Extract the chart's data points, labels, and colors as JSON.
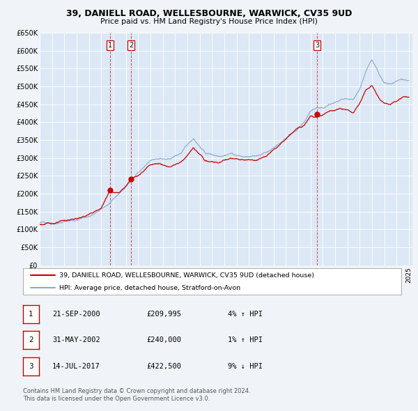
{
  "title": "39, DANIELL ROAD, WELLESBOURNE, WARWICK, CV35 9UD",
  "subtitle": "Price paid vs. HM Land Registry's House Price Index (HPI)",
  "background_color": "#f0f4f8",
  "plot_bg_color": "#dce8f5",
  "grid_color": "#ffffff",
  "red_line_color": "#cc0000",
  "blue_line_color": "#88aacc",
  "ylim": [
    0,
    650000
  ],
  "yticks": [
    0,
    50000,
    100000,
    150000,
    200000,
    250000,
    300000,
    350000,
    400000,
    450000,
    500000,
    550000,
    600000,
    650000
  ],
  "ytick_labels": [
    "£0",
    "£50K",
    "£100K",
    "£150K",
    "£200K",
    "£250K",
    "£300K",
    "£350K",
    "£400K",
    "£450K",
    "£500K",
    "£550K",
    "£600K",
    "£650K"
  ],
  "xlim_start": 1995.0,
  "xlim_end": 2025.3,
  "xtick_years": [
    1995,
    1996,
    1997,
    1998,
    1999,
    2000,
    2001,
    2002,
    2003,
    2004,
    2005,
    2006,
    2007,
    2008,
    2009,
    2010,
    2011,
    2012,
    2013,
    2014,
    2015,
    2016,
    2017,
    2018,
    2019,
    2020,
    2021,
    2022,
    2023,
    2024,
    2025
  ],
  "sale_dates": [
    2000.72,
    2002.42,
    2017.54
  ],
  "sale_prices": [
    209995,
    240000,
    422500
  ],
  "sale_labels": [
    "1",
    "2",
    "3"
  ],
  "vline_x": [
    2000.72,
    2002.42,
    2017.54
  ],
  "table_rows": [
    {
      "num": "1",
      "date": "21-SEP-2000",
      "price": "£209,995",
      "pct": "4% ↑ HPI"
    },
    {
      "num": "2",
      "date": "31-MAY-2002",
      "price": "£240,000",
      "pct": "1% ↑ HPI"
    },
    {
      "num": "3",
      "date": "14-JUL-2017",
      "price": "£422,500",
      "pct": "9% ↓ HPI"
    }
  ],
  "footer1": "Contains HM Land Registry data © Crown copyright and database right 2024.",
  "footer2": "This data is licensed under the Open Government Licence v3.0."
}
